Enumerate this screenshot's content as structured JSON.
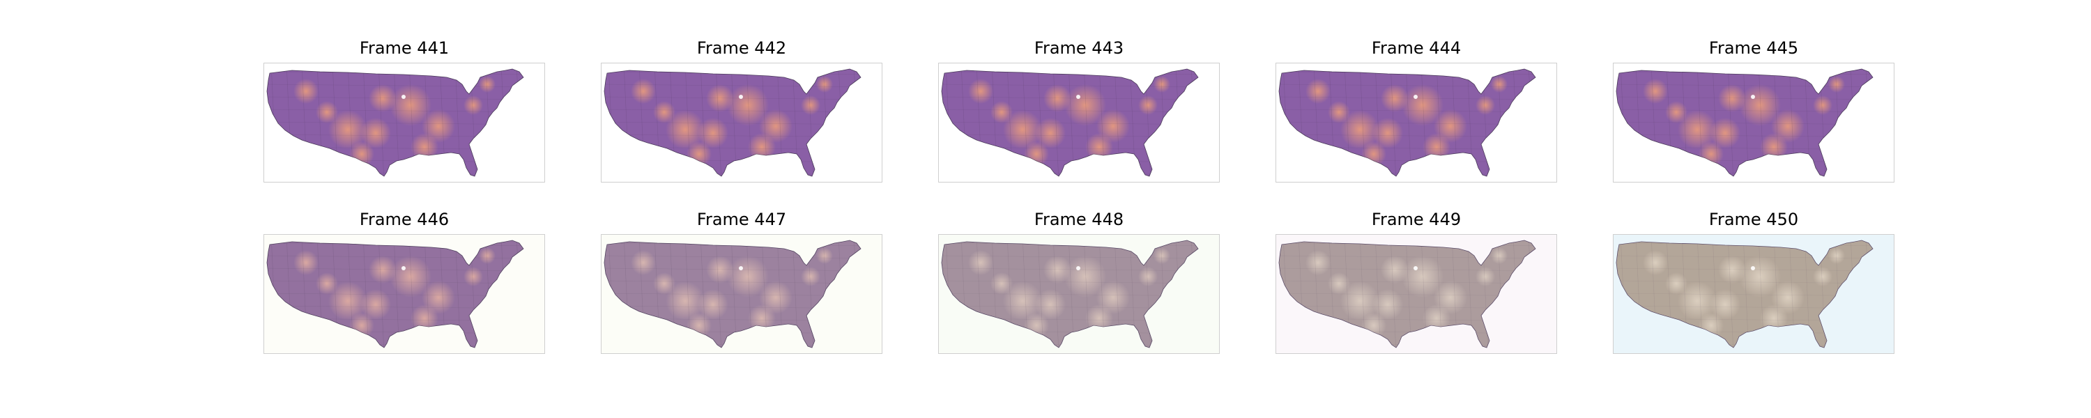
{
  "frames": [
    {
      "title": "Frame 441",
      "bg": "#ffffff",
      "land": "#8a5fa6",
      "warm": "#f0a07a",
      "desaturation": 0.0
    },
    {
      "title": "Frame 442",
      "bg": "#ffffff",
      "land": "#8a5fa6",
      "warm": "#f0a07a",
      "desaturation": 0.0
    },
    {
      "title": "Frame 443",
      "bg": "#ffffff",
      "land": "#8a5fa6",
      "warm": "#f0a07a",
      "desaturation": 0.0
    },
    {
      "title": "Frame 444",
      "bg": "#ffffff",
      "land": "#8a5fa6",
      "warm": "#f0a07a",
      "desaturation": 0.0
    },
    {
      "title": "Frame 445",
      "bg": "#ffffff",
      "land": "#8a5fa6",
      "warm": "#f0a07a",
      "desaturation": 0.0
    },
    {
      "title": "Frame 446",
      "bg": "#fdfdf8",
      "land": "#8e6a9c",
      "warm": "#e8b0a0",
      "desaturation": 0.2
    },
    {
      "title": "Frame 447",
      "bg": "#fcfdf7",
      "land": "#94789a",
      "warm": "#e3bdb0",
      "desaturation": 0.35
    },
    {
      "title": "Frame 448",
      "bg": "#f9fcf6",
      "land": "#9a8496",
      "warm": "#e0c8bc",
      "desaturation": 0.5
    },
    {
      "title": "Frame 449",
      "bg": "#fbf7fa",
      "land": "#a08e92",
      "warm": "#e2d2c4",
      "desaturation": 0.65
    },
    {
      "title": "Frame 450",
      "bg": "#eaf5fa",
      "land": "#a69688",
      "warm": "#e6d8c6",
      "desaturation": 0.8
    }
  ]
}
